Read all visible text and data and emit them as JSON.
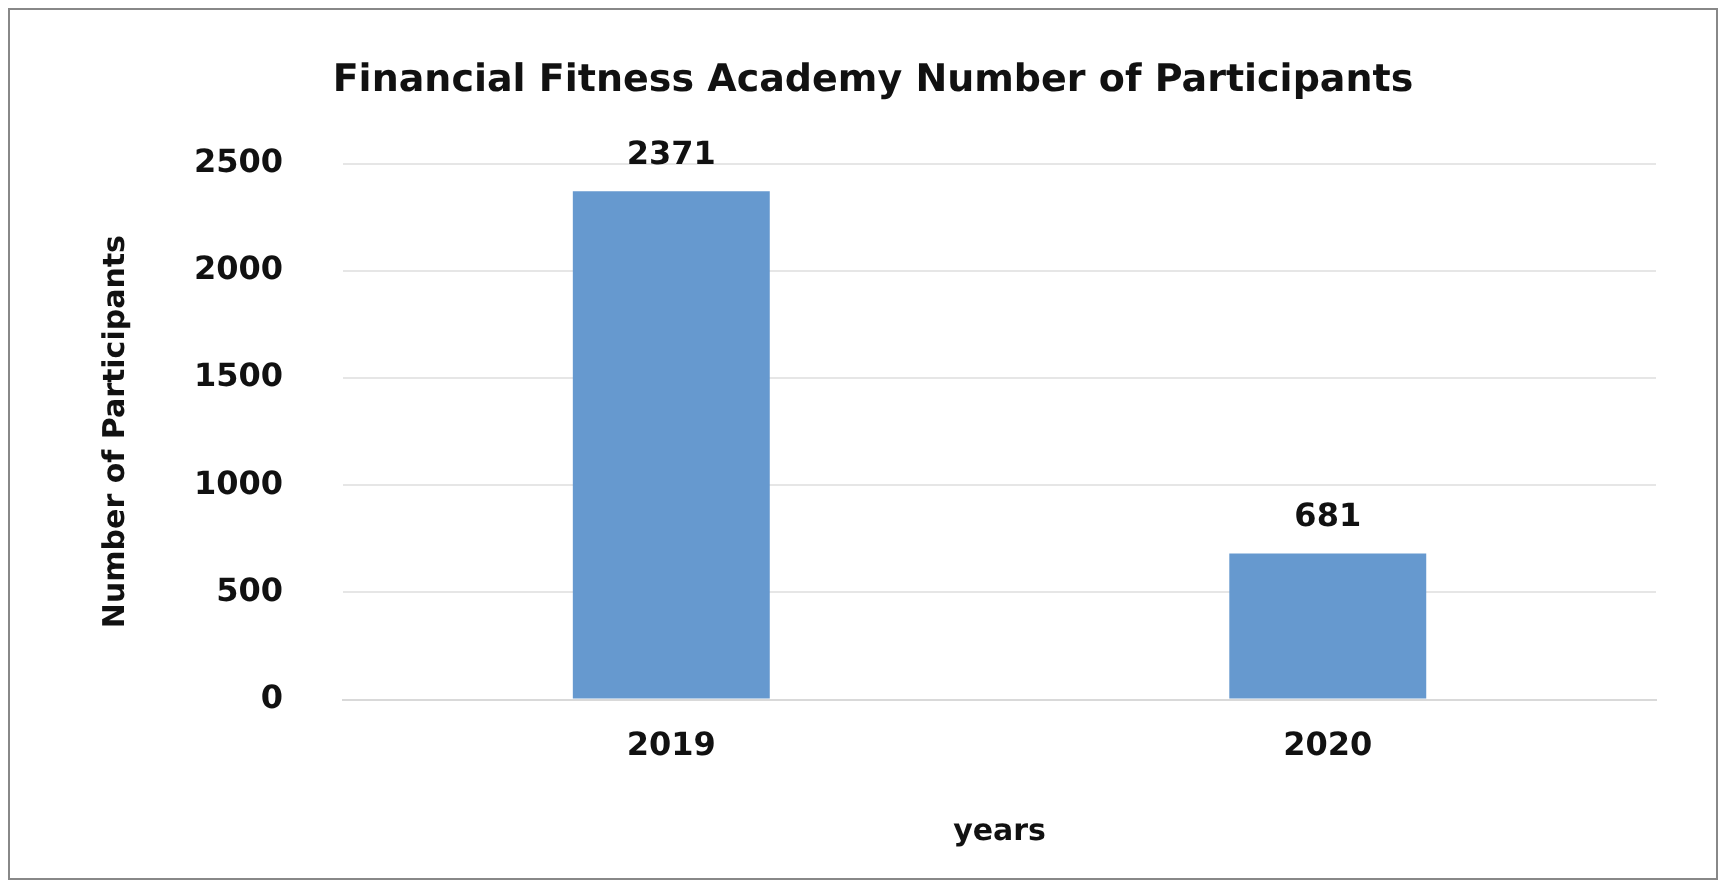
{
  "chart_data": {
    "type": "bar",
    "title": "Financial Fitness Academy Number of Participants",
    "xlabel": "years",
    "ylabel": "Number of Participants",
    "categories": [
      "2019",
      "2020"
    ],
    "values": [
      2371,
      681
    ],
    "color": "#6699cf",
    "ylim": [
      0,
      2500
    ],
    "yticks": [
      0,
      500,
      1000,
      1500,
      2000,
      2500
    ],
    "grid": "y",
    "data_labels": true,
    "legend": false
  }
}
